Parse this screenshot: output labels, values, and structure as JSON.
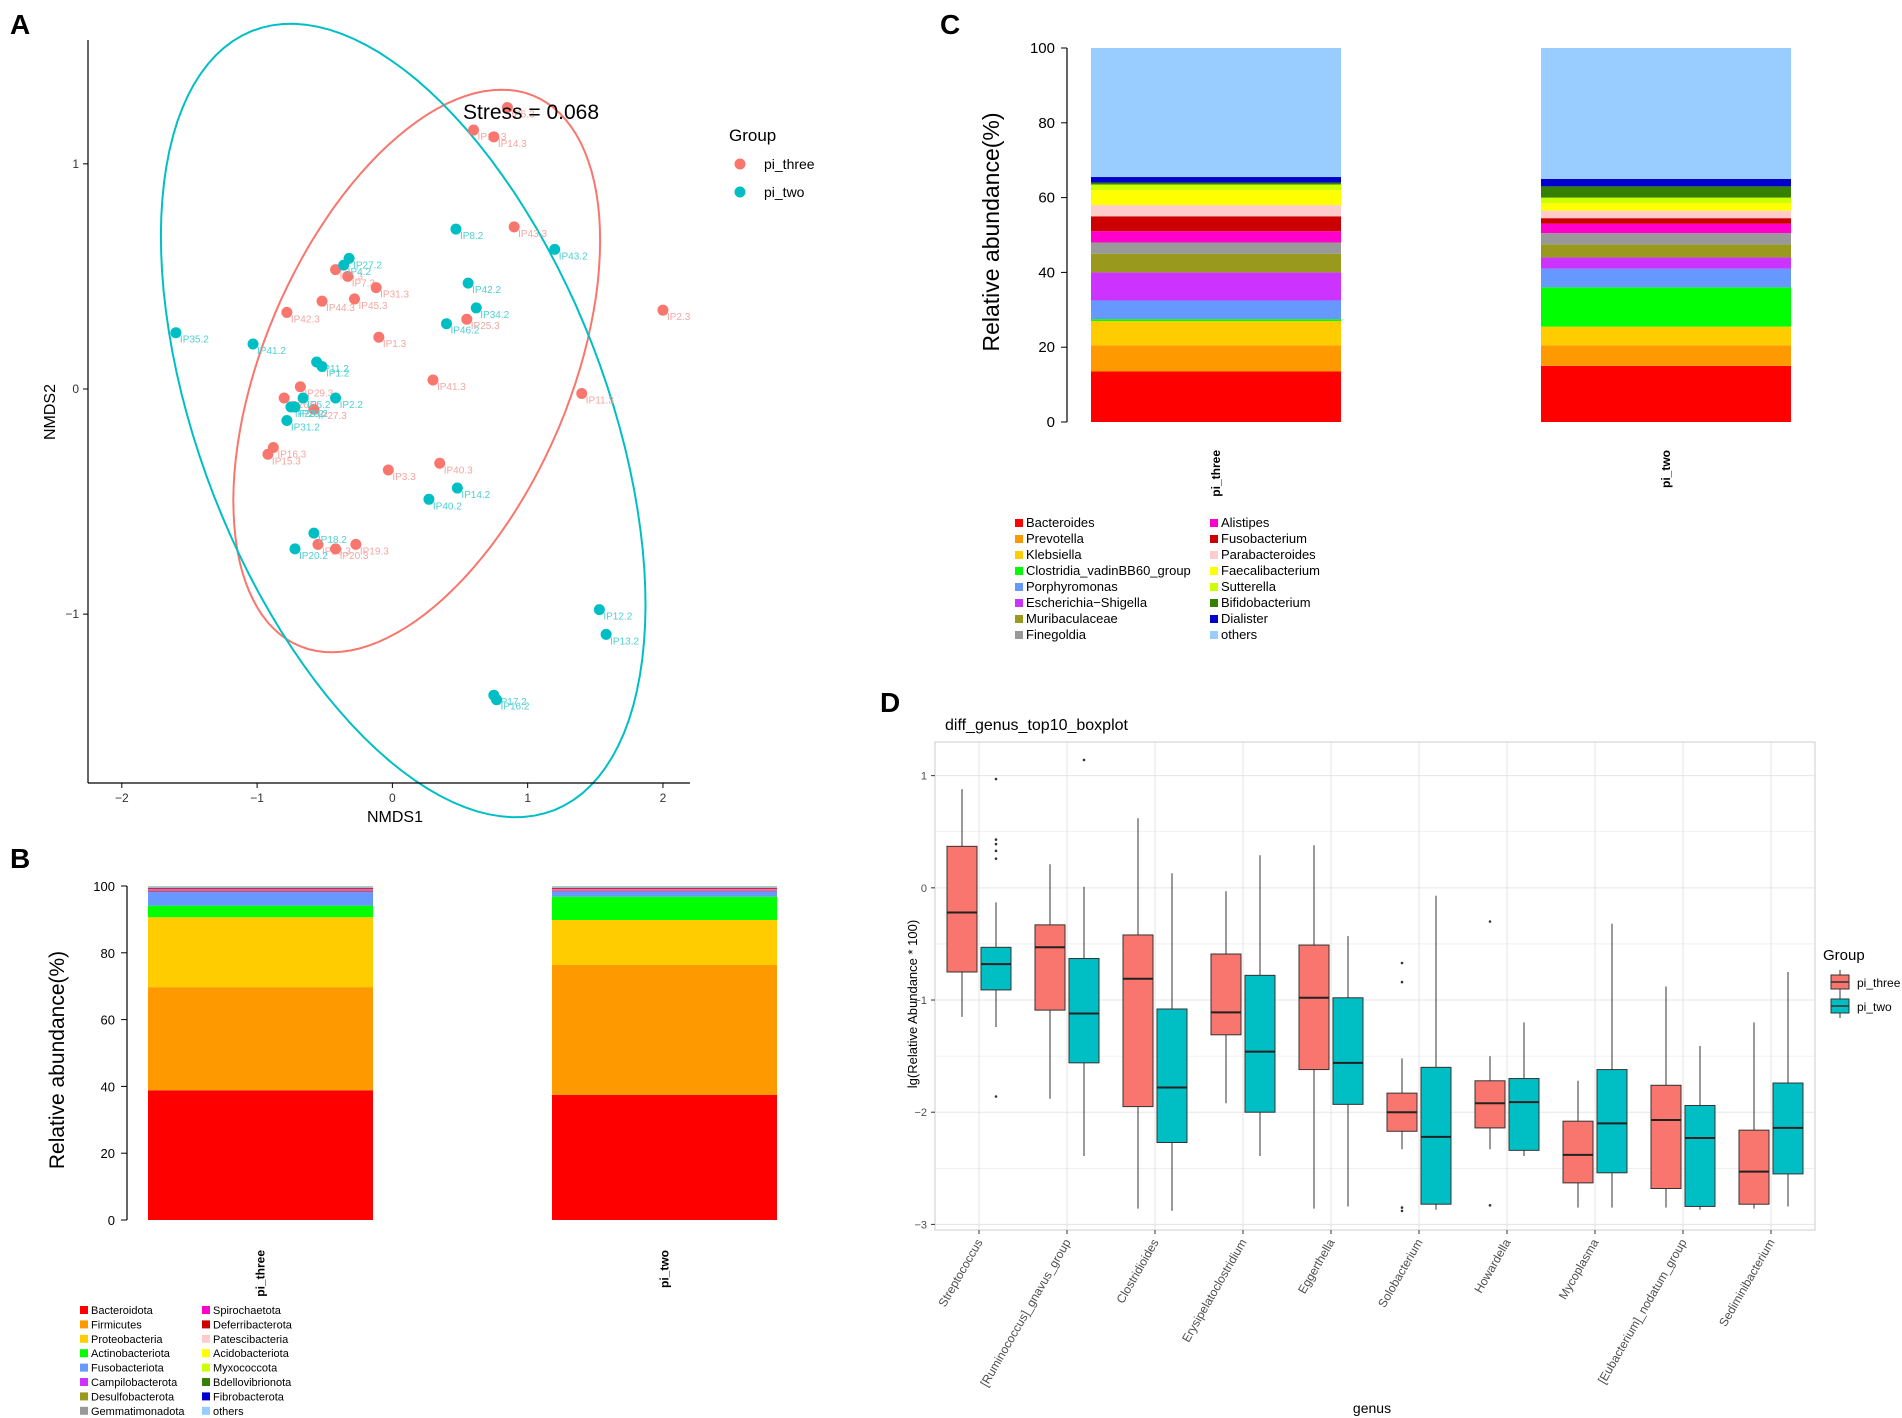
{
  "figure": {
    "panel_labels": [
      "A",
      "B",
      "C",
      "D"
    ],
    "colors": {
      "pi_three": "#F8766D",
      "pi_two": "#00BFC4",
      "grid_bg": "#ffffff",
      "grid_line": "#e5e5e5",
      "axis": "#000000",
      "tick_text": "#4d4d4d"
    }
  },
  "chart_data": [
    {
      "panel": "A",
      "type": "scatter",
      "title": "",
      "xlabel": "NMDS1",
      "ylabel": "NMDS2",
      "xlim": [
        -2.25,
        2.2
      ],
      "ylim": [
        -1.75,
        1.55
      ],
      "xticks": [
        -2,
        -1,
        0,
        1,
        2
      ],
      "xtick_labels": [
        "−2",
        "−1",
        "0",
        "1",
        "2"
      ],
      "yticks": [
        -1,
        0,
        1
      ],
      "ytick_labels": [
        "−1",
        "0",
        "1"
      ],
      "annotation": "Stress = 0.068",
      "legend": {
        "title": "Group",
        "entries": [
          "pi_three",
          "pi_two"
        ]
      },
      "ellipses": [
        {
          "group": "pi_three",
          "cx": 0.18,
          "cy": 0.08,
          "rx": 1.58,
          "ry": 0.95,
          "angle_deg": 40
        },
        {
          "group": "pi_two",
          "cx": 0.08,
          "cy": -0.14,
          "rx": 2.15,
          "ry": 1.3,
          "angle_deg": -44
        }
      ],
      "series": [
        {
          "name": "pi_three",
          "points": [
            {
              "x": 0.6,
              "y": 1.15,
              "label": "IP13.3"
            },
            {
              "x": 0.75,
              "y": 1.12,
              "label": "IP14.3"
            },
            {
              "x": 0.85,
              "y": 1.25,
              "label": "IP5.3"
            },
            {
              "x": 0.9,
              "y": 0.72,
              "label": "IP43.3"
            },
            {
              "x": 2.0,
              "y": 0.35,
              "label": "IP2.3"
            },
            {
              "x": -0.42,
              "y": 0.53,
              "label": "IP6.3"
            },
            {
              "x": -0.33,
              "y": 0.5,
              "label": "IP7.3"
            },
            {
              "x": -0.12,
              "y": 0.45,
              "label": "IP31.3"
            },
            {
              "x": -0.28,
              "y": 0.4,
              "label": "IP45.3"
            },
            {
              "x": -0.52,
              "y": 0.39,
              "label": "IP44.3"
            },
            {
              "x": -0.78,
              "y": 0.34,
              "label": "IP42.3"
            },
            {
              "x": -0.1,
              "y": 0.23,
              "label": "IP1.3"
            },
            {
              "x": 0.55,
              "y": 0.31,
              "label": "IP25.3"
            },
            {
              "x": 0.3,
              "y": 0.04,
              "label": "IP41.3"
            },
            {
              "x": 1.4,
              "y": -0.02,
              "label": "IP11.3"
            },
            {
              "x": -0.68,
              "y": 0.01,
              "label": "IP29.3"
            },
            {
              "x": -0.8,
              "y": -0.04,
              "label": "IP26.3"
            },
            {
              "x": -0.58,
              "y": -0.09,
              "label": "IP27.3"
            },
            {
              "x": -0.88,
              "y": -0.26,
              "label": "IP16.3"
            },
            {
              "x": -0.92,
              "y": -0.29,
              "label": "IP15.3"
            },
            {
              "x": -0.03,
              "y": -0.36,
              "label": "IP3.3"
            },
            {
              "x": 0.35,
              "y": -0.33,
              "label": "IP40.3"
            },
            {
              "x": -0.55,
              "y": -0.69,
              "label": "IP18.3"
            },
            {
              "x": -0.42,
              "y": -0.71,
              "label": "IP20.3"
            },
            {
              "x": -0.27,
              "y": -0.69,
              "label": "IP19.3"
            }
          ]
        },
        {
          "name": "pi_two",
          "points": [
            {
              "x": 0.47,
              "y": 0.71,
              "label": "IP8.2"
            },
            {
              "x": 1.2,
              "y": 0.62,
              "label": "IP43.2"
            },
            {
              "x": -0.32,
              "y": 0.58,
              "label": "IP27.2"
            },
            {
              "x": -0.36,
              "y": 0.55,
              "label": "IP4.2"
            },
            {
              "x": 0.56,
              "y": 0.47,
              "label": "IP42.2"
            },
            {
              "x": 0.62,
              "y": 0.36,
              "label": "IP34.2"
            },
            {
              "x": 0.4,
              "y": 0.29,
              "label": "IP46.2"
            },
            {
              "x": -1.6,
              "y": 0.25,
              "label": "IP35.2"
            },
            {
              "x": -1.03,
              "y": 0.2,
              "label": "IP41.2"
            },
            {
              "x": -0.56,
              "y": 0.12,
              "label": "IP11.2"
            },
            {
              "x": -0.52,
              "y": 0.1,
              "label": "IP1.2"
            },
            {
              "x": -0.42,
              "y": -0.04,
              "label": "IP2.2"
            },
            {
              "x": -0.66,
              "y": -0.04,
              "label": "IP5.2"
            },
            {
              "x": -0.75,
              "y": -0.08,
              "label": "IP23.2"
            },
            {
              "x": -0.72,
              "y": -0.08,
              "label": "IP29.2"
            },
            {
              "x": -0.78,
              "y": -0.14,
              "label": "IP31.2"
            },
            {
              "x": 0.27,
              "y": -0.49,
              "label": "IP40.2"
            },
            {
              "x": 0.48,
              "y": -0.44,
              "label": "IP14.2"
            },
            {
              "x": -0.58,
              "y": -0.64,
              "label": "IP18.2"
            },
            {
              "x": -0.72,
              "y": -0.71,
              "label": "IP20.2"
            },
            {
              "x": 1.53,
              "y": -0.98,
              "label": "IP12.2"
            },
            {
              "x": 1.58,
              "y": -1.09,
              "label": "IP13.2"
            },
            {
              "x": 0.75,
              "y": -1.36,
              "label": "IP17.2"
            },
            {
              "x": 0.77,
              "y": -1.38,
              "label": "IP16.2"
            }
          ]
        }
      ]
    },
    {
      "panel": "B",
      "type": "bar",
      "stacked": true,
      "title": "",
      "xlabel": "",
      "ylabel": "Relative abundance(%)",
      "ylim": [
        0,
        100
      ],
      "yticks": [
        0,
        20,
        40,
        60,
        80,
        100
      ],
      "categories": [
        "pi_three",
        "pi_two"
      ],
      "series": [
        {
          "name": "Bacteroidota",
          "color": "#FF0000",
          "values": [
            39,
            37.5
          ]
        },
        {
          "name": "Firmicutes",
          "color": "#FF9900",
          "values": [
            31,
            39
          ]
        },
        {
          "name": "Proteobacteria",
          "color": "#FFCC00",
          "values": [
            21,
            13.5
          ]
        },
        {
          "name": "Actinobacteriota",
          "color": "#00FF00",
          "values": [
            3.5,
            7
          ]
        },
        {
          "name": "Fusobacteriota",
          "color": "#6699FF",
          "values": [
            4,
            1.5
          ]
        },
        {
          "name": "Campilobacterota",
          "color": "#CC33FF",
          "values": [
            0.4,
            0.3
          ]
        },
        {
          "name": "Desulfobacterota",
          "color": "#99991E",
          "values": [
            0.3,
            0.3
          ]
        },
        {
          "name": "Gemmatimonadota",
          "color": "#999999",
          "values": [
            0.2,
            0.1
          ]
        },
        {
          "name": "Spirochaetota",
          "color": "#FF00CC",
          "values": [
            0.2,
            0.2
          ]
        },
        {
          "name": "Deferribacterota",
          "color": "#CC0000",
          "values": [
            0.2,
            0.2
          ]
        },
        {
          "name": "Patescibacteria",
          "color": "#FFCCCC",
          "values": [
            0.1,
            0.1
          ]
        },
        {
          "name": "Acidobacteriota",
          "color": "#FFFF00",
          "values": [
            0.05,
            0.05
          ]
        },
        {
          "name": "Myxococcota",
          "color": "#CCFF00",
          "values": [
            0.05,
            0.05
          ]
        },
        {
          "name": "Bdellovibrionota",
          "color": "#358000",
          "values": [
            0.05,
            0.05
          ]
        },
        {
          "name": "Fibrobacterota",
          "color": "#0000CC",
          "values": [
            0.05,
            0.05
          ]
        },
        {
          "name": "others",
          "color": "#99CCFF",
          "values": [
            0.3,
            0.3
          ]
        }
      ]
    },
    {
      "panel": "C",
      "type": "bar",
      "stacked": true,
      "title": "",
      "xlabel": "",
      "ylabel": "Relative abundance(%)",
      "ylim": [
        0,
        100
      ],
      "yticks": [
        0,
        20,
        40,
        60,
        80,
        100
      ],
      "categories": [
        "pi_three",
        "pi_two"
      ],
      "series": [
        {
          "name": "Bacteroides",
          "color": "#FF0000",
          "values": [
            13.5,
            15
          ]
        },
        {
          "name": "Prevotella",
          "color": "#FF9900",
          "values": [
            7,
            5.5
          ]
        },
        {
          "name": "Klebsiella",
          "color": "#FFCC00",
          "values": [
            6.5,
            5
          ]
        },
        {
          "name": "Clostridia_vadinBB60_group",
          "color": "#00FF00",
          "values": [
            0.5,
            10.5
          ]
        },
        {
          "name": "Porphyromonas",
          "color": "#6699FF",
          "values": [
            5,
            5
          ]
        },
        {
          "name": "Escherichia−Shigella",
          "color": "#CC33FF",
          "values": [
            7.5,
            3
          ]
        },
        {
          "name": "Muribaculaceae",
          "color": "#99991E",
          "values": [
            5,
            3.5
          ]
        },
        {
          "name": "Finegoldia",
          "color": "#999999",
          "values": [
            3,
            3
          ]
        },
        {
          "name": "Alistipes",
          "color": "#FF00CC",
          "values": [
            3,
            2.5
          ]
        },
        {
          "name": "Fusobacterium",
          "color": "#CC0000",
          "values": [
            4,
            1.5
          ]
        },
        {
          "name": "Parabacteroides",
          "color": "#FFCCCC",
          "values": [
            3,
            2
          ]
        },
        {
          "name": "Faecalibacterium",
          "color": "#FFFF00",
          "values": [
            4,
            2
          ]
        },
        {
          "name": "Sutterella",
          "color": "#CCFF00",
          "values": [
            1.5,
            1.5
          ]
        },
        {
          "name": "Bifidobacterium",
          "color": "#358000",
          "values": [
            0.5,
            3
          ]
        },
        {
          "name": "Dialister",
          "color": "#0000CC",
          "values": [
            1.5,
            2
          ]
        },
        {
          "name": "others",
          "color": "#99CCFF",
          "values": [
            34.5,
            35
          ]
        }
      ]
    },
    {
      "panel": "D",
      "type": "boxplot",
      "title": "diff_genus_top10_boxplot",
      "xlabel": "genus",
      "ylabel": "lg(Relative Abundance * 100)",
      "ylim": [
        -3.05,
        1.3
      ],
      "yticks": [
        -3,
        -2,
        -1,
        0,
        1
      ],
      "ytick_labels": [
        "−3",
        "−2",
        "−1",
        "0",
        "1"
      ],
      "legend": {
        "title": "Group",
        "entries": [
          "pi_three",
          "pi_two"
        ]
      },
      "categories": [
        "Streptococcus",
        "[Ruminococcus]_gnavus_group",
        "Clostridioides",
        "Erysipelatoclostridium",
        "Eggerthella",
        "Solobacterium",
        "Howardella",
        "Mycoplasma",
        "[Eubacterium]_nodatum_group",
        "Sediminibacterium"
      ],
      "series": [
        {
          "name": "pi_three",
          "boxes": [
            {
              "min": -1.15,
              "q1": -0.75,
              "median": -0.22,
              "q3": 0.37,
              "max": 0.88,
              "outliers": []
            },
            {
              "min": -1.88,
              "q1": -1.09,
              "median": -0.53,
              "q3": -0.33,
              "max": 0.21,
              "outliers": []
            },
            {
              "min": -2.86,
              "q1": -1.95,
              "median": -0.81,
              "q3": -0.42,
              "max": 0.62,
              "outliers": []
            },
            {
              "min": -1.92,
              "q1": -1.31,
              "median": -1.11,
              "q3": -0.59,
              "max": -0.03,
              "outliers": []
            },
            {
              "min": -2.86,
              "q1": -1.62,
              "median": -0.98,
              "q3": -0.51,
              "max": 0.38,
              "outliers": []
            },
            {
              "min": -2.33,
              "q1": -2.17,
              "median": -2.0,
              "q3": -1.83,
              "max": -1.52,
              "outliers": [
                -0.67,
                -0.84,
                -2.85,
                -2.88
              ]
            },
            {
              "min": -2.33,
              "q1": -2.14,
              "median": -1.92,
              "q3": -1.72,
              "max": -1.5,
              "outliers": [
                -0.3,
                -2.83
              ]
            },
            {
              "min": -2.85,
              "q1": -2.63,
              "median": -2.38,
              "q3": -2.08,
              "max": -1.72,
              "outliers": []
            },
            {
              "min": -2.85,
              "q1": -2.68,
              "median": -2.07,
              "q3": -1.76,
              "max": -0.88,
              "outliers": []
            },
            {
              "min": -2.86,
              "q1": -2.82,
              "median": -2.53,
              "q3": -2.16,
              "max": -1.2,
              "outliers": []
            }
          ]
        },
        {
          "name": "pi_two",
          "boxes": [
            {
              "min": -1.24,
              "q1": -0.91,
              "median": -0.68,
              "q3": -0.53,
              "max": -0.13,
              "outliers": [
                0.97,
                0.43,
                0.39,
                0.33,
                0.26,
                -1.86
              ]
            },
            {
              "min": -2.39,
              "q1": -1.56,
              "median": -1.12,
              "q3": -0.63,
              "max": 0.01,
              "outliers": [
                1.14
              ]
            },
            {
              "min": -2.88,
              "q1": -2.27,
              "median": -1.78,
              "q3": -1.08,
              "max": 0.13,
              "outliers": []
            },
            {
              "min": -2.39,
              "q1": -2.0,
              "median": -1.46,
              "q3": -0.78,
              "max": 0.29,
              "outliers": []
            },
            {
              "min": -2.84,
              "q1": -1.93,
              "median": -1.56,
              "q3": -0.98,
              "max": -0.43,
              "outliers": []
            },
            {
              "min": -2.87,
              "q1": -2.82,
              "median": -2.22,
              "q3": -1.6,
              "max": -0.07,
              "outliers": []
            },
            {
              "min": -2.39,
              "q1": -2.34,
              "median": -1.91,
              "q3": -1.7,
              "max": -1.2,
              "outliers": []
            },
            {
              "min": -2.85,
              "q1": -2.54,
              "median": -2.1,
              "q3": -1.62,
              "max": -0.32,
              "outliers": []
            },
            {
              "min": -2.87,
              "q1": -2.84,
              "median": -2.23,
              "q3": -1.94,
              "max": -1.41,
              "outliers": []
            },
            {
              "min": -2.84,
              "q1": -2.55,
              "median": -2.14,
              "q3": -1.74,
              "max": -0.75,
              "outliers": []
            }
          ]
        }
      ]
    }
  ]
}
